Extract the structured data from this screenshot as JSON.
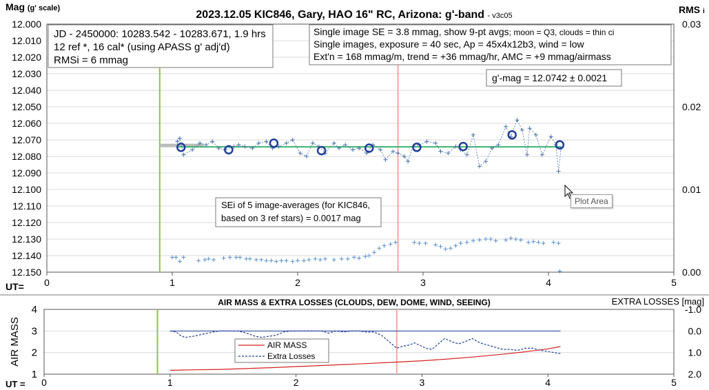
{
  "chart_data": [
    {
      "type": "scatter",
      "title": "2023.12.05 KIC846, Gary, HAO 16\" RC, Arizona: g'-band",
      "version": "- v3c05",
      "ylabel": "Mag",
      "ylabel_note": "(g' scale)",
      "y2label": "RMS",
      "y2label_suffix": "i",
      "xlabel": "UT=",
      "xlim": [
        0,
        5
      ],
      "ylim": [
        12.15,
        12.0
      ],
      "y2lim": [
        0,
        0.03
      ],
      "x_ticks": [
        "0",
        "1",
        "2",
        "3",
        "4",
        "5"
      ],
      "y_ticks": [
        "12.000",
        "12.010",
        "12.020",
        "12.030",
        "12.040",
        "12.050",
        "12.060",
        "12.070",
        "12.080",
        "12.090",
        "12.100",
        "12.110",
        "12.120",
        "12.130",
        "12.140",
        "12.150"
      ],
      "y2_ticks": [
        "0.03",
        "0.02",
        "0.01",
        "0.00"
      ],
      "grid": true,
      "info_left": [
        "JD - 2450000: 10283.542 - 10283.671, 1.9 hrs",
        "12 ref *, 16 cal* (using APASS g' adj'd)",
        "RMSi = 6 mmag"
      ],
      "info_right_1": "Single image SE = 3.8 mmag, show  9-pt avgs",
      "info_right_1_small": "; moon = Q3, clouds = thin ci",
      "info_right_2": "Single images, exposure = 40 sec, Ap = 45x4x12b3, wind = low",
      "info_right_3": "Ext'n = 168 mmag/m, trend = +36 mmag/hr, AMC = +9 mmag/airmass",
      "gmag_label": "g'-mag = 12.0742 ± 0.0021",
      "sei_label_1": "SEi of 5 image-averages (for KIC846,",
      "sei_label_2": "based on 3 ref stars) = 0.0017 mag",
      "vlines": [
        {
          "x": 0.9,
          "color": "#8cc63f"
        },
        {
          "x": 2.8,
          "color": "#f4a7a7"
        }
      ],
      "mean_mag": 12.0742,
      "series": [
        {
          "color": "#4a72a8",
          "x": [
            1.04,
            1.06,
            1.09,
            1.16,
            1.22,
            1.27,
            1.32,
            1.37,
            1.42,
            1.49,
            1.53,
            1.58,
            1.64,
            1.69,
            1.75,
            1.8,
            1.85,
            1.91,
            1.96,
            2.02,
            2.07,
            2.12,
            2.17,
            2.22,
            2.29,
            2.33,
            2.38,
            2.44,
            2.49,
            2.55,
            2.6,
            2.66,
            2.7,
            2.76,
            2.8,
            2.85,
            2.88,
            2.92,
            2.97,
            3.03,
            3.1,
            3.14,
            3.2,
            3.26,
            3.3,
            3.35,
            3.4,
            3.45,
            3.5,
            3.55,
            3.6,
            3.66,
            3.7,
            3.75,
            3.79,
            3.83,
            3.85,
            3.9,
            3.95,
            4.02,
            4.06,
            4.08,
            4.1
          ],
          "y": [
            12.071,
            12.069,
            12.079,
            12.076,
            12.072,
            12.073,
            12.071,
            12.075,
            12.076,
            12.074,
            12.073,
            12.074,
            12.075,
            12.072,
            12.071,
            12.075,
            12.074,
            12.072,
            12.07,
            12.078,
            12.08,
            12.072,
            12.074,
            12.078,
            12.072,
            12.075,
            12.073,
            12.076,
            12.075,
            12.078,
            12.073,
            12.076,
            12.082,
            12.077,
            12.078,
            12.08,
            12.083,
            12.074,
            12.073,
            12.071,
            12.072,
            12.077,
            12.078,
            12.074,
            12.076,
            12.079,
            12.067,
            12.086,
            12.083,
            12.075,
            12.073,
            12.062,
            12.068,
            12.058,
            12.064,
            12.079,
            12.063,
            12.067,
            12.079,
            12.068,
            12.073,
            12.089,
            12.075
          ]
        },
        {
          "name": "9-pt avgs",
          "color": "#1f3d99",
          "x": [
            1.07,
            1.45,
            1.81,
            2.19,
            2.57,
            2.95,
            3.32,
            3.71,
            4.09
          ],
          "y": [
            12.0745,
            12.076,
            12.072,
            12.0765,
            12.075,
            12.0745,
            12.074,
            12.067,
            12.073
          ]
        },
        {
          "name": "RMSi",
          "color": "#5a8fc4",
          "x": [
            1.0,
            1.03,
            1.06,
            1.09,
            1.21,
            1.26,
            1.29,
            1.33,
            1.41,
            1.46,
            1.51,
            1.54,
            1.59,
            1.62,
            1.67,
            1.71,
            1.75,
            1.79,
            1.83,
            1.87,
            1.91,
            1.96,
            2.0,
            2.05,
            2.09,
            2.14,
            2.18,
            2.22,
            2.29,
            2.35,
            2.4,
            2.45,
            2.49,
            2.54,
            2.57,
            2.61,
            2.65,
            2.69,
            2.74,
            2.78,
            2.93,
            2.97,
            3.02,
            3.1,
            3.14,
            3.18,
            3.22,
            3.26,
            3.3,
            3.35,
            3.4,
            3.45,
            3.5,
            3.54,
            3.58,
            3.66,
            3.7,
            3.74,
            3.78,
            3.84,
            3.88,
            3.92,
            3.96,
            4.04,
            4.08,
            4.09
          ],
          "y": [
            0.0018,
            0.0018,
            0.0013,
            0.0018,
            0.0014,
            0.0015,
            0.0016,
            0.0015,
            0.0017,
            0.0018,
            0.0018,
            0.0018,
            0.0016,
            0.0016,
            0.0015,
            0.0015,
            0.0014,
            0.0014,
            0.0013,
            0.0014,
            0.0014,
            0.0013,
            0.0014,
            0.0014,
            0.0015,
            0.0016,
            0.0015,
            0.0016,
            0.0015,
            0.0016,
            0.0016,
            0.0018,
            0.0017,
            0.0019,
            0.002,
            0.0024,
            0.0029,
            0.0032,
            0.0034,
            0.0036,
            0.0036,
            0.0035,
            0.0035,
            0.0033,
            0.0031,
            0.0028,
            0.0029,
            0.0032,
            0.0035,
            0.0036,
            0.0038,
            0.0039,
            0.004,
            0.004,
            0.0038,
            0.0039,
            0.0041,
            0.004,
            0.0039,
            0.0036,
            0.0037,
            0.0036,
            0.0035,
            0.0036,
            0.0035,
            0.0001
          ]
        }
      ]
    },
    {
      "type": "line",
      "title": "AIR MASS & EXTRA LOSSES (CLOUDS, DEW, DOME, WIND, SEEING)",
      "ylabel": "AIR MASS",
      "y2label": "EXTRA LOSSES [mag]",
      "xlabel": "UT =",
      "xlim": [
        0,
        5
      ],
      "ylim": [
        1,
        4
      ],
      "y2lim": [
        2.0,
        -1.0
      ],
      "x_ticks": [
        "0",
        "1",
        "2",
        "3",
        "4",
        "5"
      ],
      "y_ticks": [
        "1",
        "2",
        "3",
        "4"
      ],
      "y2_ticks": [
        "-1.0",
        "0.0",
        "1.0",
        "2.0"
      ],
      "grid": true,
      "legend_position": "center",
      "vlines": [
        {
          "x": 0.9,
          "color": "#8cc63f"
        },
        {
          "x": 2.8,
          "color": "#f4a7a7"
        }
      ],
      "extra_losses_zero_line": 0.0,
      "series": [
        {
          "name": "AIR MASS",
          "axis": "left",
          "color": "#d62020",
          "dash": false,
          "x": [
            1.0,
            1.2,
            1.4,
            1.6,
            1.8,
            2.0,
            2.2,
            2.4,
            2.6,
            2.8,
            3.0,
            3.2,
            3.4,
            3.6,
            3.8,
            4.0,
            4.1
          ],
          "y": [
            1.18,
            1.2,
            1.22,
            1.26,
            1.3,
            1.35,
            1.4,
            1.45,
            1.5,
            1.56,
            1.62,
            1.7,
            1.79,
            1.9,
            2.02,
            2.17,
            2.28
          ]
        },
        {
          "name": "Extra Losses",
          "axis": "right",
          "color": "#1f3d99",
          "dash": true,
          "x": [
            1.0,
            1.05,
            1.08,
            1.12,
            1.18,
            1.22,
            1.26,
            1.3,
            1.34,
            1.39,
            1.44,
            1.48,
            1.53,
            1.58,
            1.63,
            1.68,
            1.73,
            1.78,
            1.84,
            1.9,
            1.96,
            2.02,
            2.08,
            2.14,
            2.2,
            2.26,
            2.32,
            2.38,
            2.44,
            2.5,
            2.56,
            2.62,
            2.68,
            2.72,
            2.76,
            2.8,
            2.85,
            2.9,
            2.94,
            2.98,
            3.03,
            3.08,
            3.13,
            3.18,
            3.24,
            3.29,
            3.34,
            3.4,
            3.46,
            3.52,
            3.58,
            3.64,
            3.7,
            3.76,
            3.82,
            3.88,
            3.94,
            4.0,
            4.05,
            4.1
          ],
          "y": [
            0.0,
            0.05,
            0.2,
            0.3,
            0.25,
            0.2,
            0.15,
            0.1,
            0.05,
            0.0,
            0.0,
            0.0,
            0.0,
            0.05,
            0.15,
            0.25,
            0.3,
            0.25,
            0.2,
            0.05,
            0.0,
            0.0,
            0.0,
            0.0,
            0.0,
            0.1,
            0.0,
            0.05,
            0.0,
            0.0,
            0.05,
            0.05,
            0.2,
            0.4,
            0.6,
            0.8,
            0.7,
            0.65,
            0.55,
            0.65,
            0.8,
            0.85,
            0.6,
            0.35,
            0.5,
            0.6,
            0.5,
            0.35,
            0.55,
            0.65,
            0.75,
            0.85,
            0.85,
            0.9,
            0.8,
            0.8,
            0.9,
            0.95,
            1.0,
            1.05
          ]
        }
      ]
    }
  ]
}
